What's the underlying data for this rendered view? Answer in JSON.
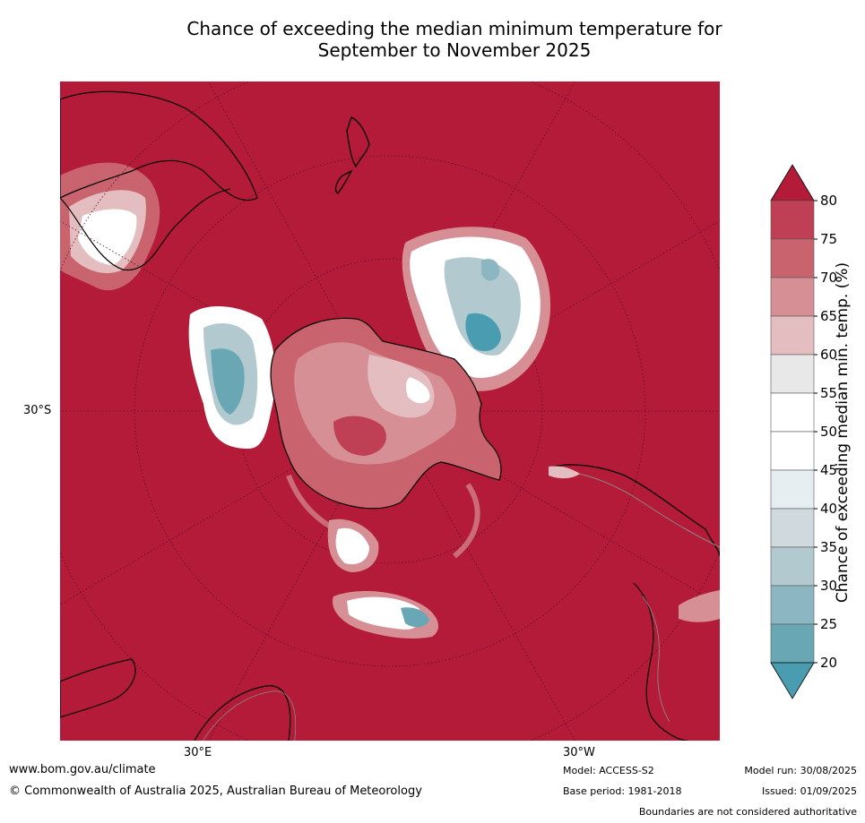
{
  "title": {
    "line1": "Chance of exceeding the median minimum temperature for",
    "line2": "September to November 2025"
  },
  "map": {
    "lat_label": "30°S",
    "lon_labels": [
      "30°E",
      "30°W"
    ],
    "background_color": "#b31b38"
  },
  "colorbar": {
    "title": "Chance of exceeding median min. temp. (%)",
    "ticks": [
      "80",
      "75",
      "70",
      "65",
      "60",
      "55",
      "50",
      "45",
      "40",
      "35",
      "30",
      "25",
      "20"
    ],
    "colors": [
      "#b31b38",
      "#bf3f54",
      "#c9646f",
      "#d68f95",
      "#e3bdbf",
      "#e8e8e8",
      "#ffffff",
      "#ffffff",
      "#e7eef1",
      "#d0dade",
      "#b2c9cf",
      "#8cb7c2",
      "#6aa7b5",
      "#4a9db0"
    ]
  },
  "footer": {
    "website": "www.bom.gov.au/climate",
    "copyright": "© Commonwealth of Australia 2025, Australian Bureau of Meteorology",
    "model": "Model: ACCESS-S2",
    "base_period": "Base period: 1981-2018",
    "model_run": "Model run: 30/08/2025",
    "issued": "Issued: 01/09/2025",
    "disclaimer": "Boundaries are not considered authoritative"
  }
}
